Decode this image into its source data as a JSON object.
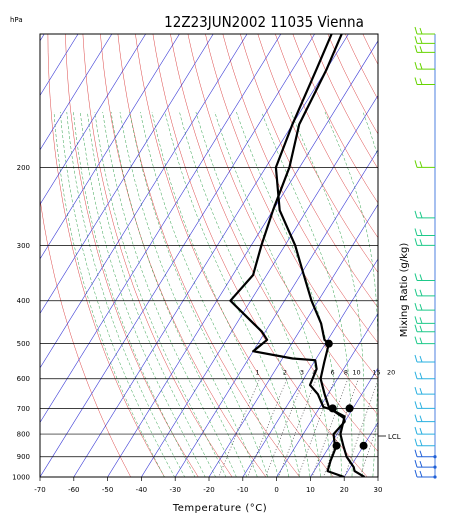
{
  "chart_data": {
    "type": "line",
    "title": "12Z23JUN2002 11035 Vienna",
    "xlabel": "Temperature (°C)",
    "ylabel": "hPa",
    "side_label": "Mixing Ratio (g/kg)",
    "lcl_label": "LCL",
    "xlim": [
      -70,
      30
    ],
    "ylim": [
      1000,
      100
    ],
    "y_scale": "log",
    "x_ticks": [
      "-70",
      "-60",
      "-50",
      "-40",
      "-30",
      "-20",
      "-10",
      "0",
      "10",
      "20",
      "30"
    ],
    "y_ticks": [
      "200",
      "300",
      "400",
      "500",
      "600",
      "700",
      "800",
      "900",
      "1000"
    ],
    "mixing_ratio_labels": [
      "1",
      "2",
      "3",
      "4",
      "6",
      "8",
      "10",
      "15",
      "20"
    ],
    "series": [
      {
        "role": "temperature",
        "points": [
          [
            -65,
            100
          ],
          [
            -63,
            120
          ],
          [
            -60,
            160
          ],
          [
            -57,
            200
          ],
          [
            -48,
            250
          ],
          [
            -37,
            300
          ],
          [
            -29,
            350
          ],
          [
            -22,
            400
          ],
          [
            -15,
            450
          ],
          [
            -12,
            480
          ],
          [
            -11,
            490
          ],
          [
            -9,
            500
          ],
          [
            -7,
            550
          ],
          [
            -5,
            600
          ],
          [
            -1,
            650
          ],
          [
            3,
            700
          ],
          [
            5,
            710
          ],
          [
            9,
            730
          ],
          [
            11,
            800
          ],
          [
            14,
            850
          ],
          [
            17,
            900
          ],
          [
            21,
            950
          ],
          [
            22,
            970
          ],
          [
            26,
            1000
          ]
        ]
      },
      {
        "role": "dewpoint",
        "points": [
          [
            -62,
            100
          ],
          [
            -60,
            120
          ],
          [
            -58,
            160
          ],
          [
            -53,
            200
          ],
          [
            -50,
            250
          ],
          [
            -47,
            300
          ],
          [
            -44,
            350
          ],
          [
            -46,
            400
          ],
          [
            -31,
            470
          ],
          [
            -28,
            490
          ],
          [
            -29,
            505
          ],
          [
            -30,
            520
          ],
          [
            -17,
            540
          ],
          [
            -10,
            545
          ],
          [
            -8,
            570
          ],
          [
            -7,
            620
          ],
          [
            -3,
            650
          ],
          [
            1,
            695
          ],
          [
            4,
            705
          ],
          [
            9,
            735
          ],
          [
            10,
            750
          ],
          [
            9,
            800
          ],
          [
            11,
            840
          ],
          [
            12,
            850
          ],
          [
            13,
            920
          ],
          [
            14,
            970
          ],
          [
            20,
            1000
          ]
        ]
      }
    ],
    "markers": [
      [
        -9,
        500
      ],
      [
        4,
        700
      ],
      [
        9,
        700
      ],
      [
        12,
        850
      ],
      [
        20,
        850
      ]
    ],
    "wind_barb_pressures": [
      100,
      105,
      110,
      120,
      130,
      200,
      260,
      285,
      300,
      360,
      390,
      420,
      450,
      470,
      500,
      550,
      600,
      650,
      700,
      750,
      800,
      850,
      900,
      950,
      1000
    ],
    "colors": {
      "isotherm": "#3b3bd6",
      "isobar": "#000000",
      "dry_adiabat": "#d83030",
      "moist_adiabat": "#2fa04a",
      "mixing_ratio": "#505050",
      "profile": "#000000",
      "wind_upper": "#66d400",
      "wind_mid": "#1ec98a",
      "wind_low": "#2ab0e0",
      "wind_surface": "#2060d8"
    }
  }
}
